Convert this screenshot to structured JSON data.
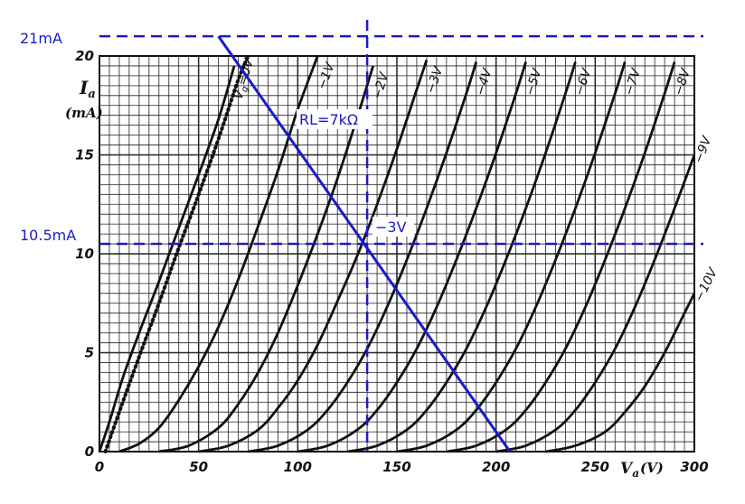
{
  "chart_data": {
    "type": "line",
    "xlabel_symbol": "V",
    "xlabel_sub": "a",
    "xlabel_unit": "(V)",
    "ylabel_symbol": "I",
    "ylabel_sub": "a",
    "ylabel_unit": "(mA)",
    "xlim": [
      0,
      300
    ],
    "ylim": [
      0,
      20
    ],
    "x_ticks": [
      "0",
      "50",
      "100",
      "150",
      "200",
      "250",
      "300"
    ],
    "x_tick_values": [
      0,
      50,
      100,
      150,
      200,
      250,
      300
    ],
    "y_ticks": [
      "0",
      "5",
      "10",
      "15",
      "20"
    ],
    "y_tick_values": [
      0,
      5,
      10,
      15,
      20
    ],
    "grid": true,
    "curves": [
      {
        "label": "Vg=0V",
        "label_prefix": "V",
        "label_sub": "g",
        "label_suffix": "=0V",
        "style": "solid",
        "points": [
          [
            0,
            0
          ],
          [
            5,
            1.5
          ],
          [
            12,
            3.8
          ],
          [
            20,
            6.0
          ],
          [
            30,
            8.6
          ],
          [
            40,
            11.3
          ],
          [
            50,
            14.0
          ],
          [
            60,
            16.8
          ],
          [
            68,
            19.5
          ]
        ]
      },
      {
        "label": "Vg=0V (dotted)",
        "style": "dotted",
        "points": [
          [
            3,
            0
          ],
          [
            10,
            2
          ],
          [
            20,
            4.8
          ],
          [
            30,
            7.5
          ],
          [
            40,
            10.3
          ],
          [
            50,
            13.0
          ],
          [
            60,
            15.8
          ],
          [
            70,
            18.8
          ],
          [
            75,
            20
          ]
        ]
      },
      {
        "label": "−1V",
        "style": "solid",
        "points": [
          [
            10,
            0
          ],
          [
            20,
            0.4
          ],
          [
            30,
            1.2
          ],
          [
            40,
            2.6
          ],
          [
            50,
            4.3
          ],
          [
            60,
            6.3
          ],
          [
            70,
            8.7
          ],
          [
            80,
            11.4
          ],
          [
            90,
            14.2
          ],
          [
            100,
            17.3
          ],
          [
            110,
            20
          ]
        ]
      },
      {
        "label": "−2V",
        "style": "solid",
        "points": [
          [
            30,
            0
          ],
          [
            45,
            0.3
          ],
          [
            60,
            1.2
          ],
          [
            70,
            2.4
          ],
          [
            80,
            4.0
          ],
          [
            90,
            6.0
          ],
          [
            100,
            8.4
          ],
          [
            110,
            11.0
          ],
          [
            120,
            13.8
          ],
          [
            130,
            16.9
          ],
          [
            138,
            19.5
          ]
        ]
      },
      {
        "label": "−3V",
        "style": "solid",
        "points": [
          [
            50,
            0
          ],
          [
            65,
            0.3
          ],
          [
            80,
            1.1
          ],
          [
            90,
            2.2
          ],
          [
            100,
            3.6
          ],
          [
            110,
            5.4
          ],
          [
            120,
            7.6
          ],
          [
            130,
            9.9
          ],
          [
            140,
            12.5
          ],
          [
            150,
            15.3
          ],
          [
            160,
            18.3
          ],
          [
            165,
            19.8
          ]
        ]
      },
      {
        "label": "−4V",
        "style": "solid",
        "points": [
          [
            75,
            0
          ],
          [
            90,
            0.3
          ],
          [
            105,
            1.1
          ],
          [
            115,
            2.1
          ],
          [
            125,
            3.5
          ],
          [
            135,
            5.2
          ],
          [
            145,
            7.3
          ],
          [
            155,
            9.7
          ],
          [
            165,
            12.3
          ],
          [
            175,
            15.1
          ],
          [
            185,
            18.1
          ],
          [
            190,
            19.7
          ]
        ]
      },
      {
        "label": "−5V",
        "style": "solid",
        "points": [
          [
            100,
            0
          ],
          [
            115,
            0.3
          ],
          [
            130,
            1.1
          ],
          [
            140,
            2.1
          ],
          [
            150,
            3.5
          ],
          [
            160,
            5.2
          ],
          [
            170,
            7.3
          ],
          [
            180,
            9.7
          ],
          [
            190,
            12.3
          ],
          [
            200,
            15.1
          ],
          [
            210,
            18.1
          ],
          [
            215,
            19.7
          ]
        ]
      },
      {
        "label": "−6V",
        "style": "solid",
        "points": [
          [
            125,
            0
          ],
          [
            140,
            0.3
          ],
          [
            155,
            1.1
          ],
          [
            165,
            2.1
          ],
          [
            175,
            3.5
          ],
          [
            185,
            5.2
          ],
          [
            195,
            7.3
          ],
          [
            205,
            9.7
          ],
          [
            215,
            12.3
          ],
          [
            225,
            15.1
          ],
          [
            235,
            18.1
          ],
          [
            240,
            19.7
          ]
        ]
      },
      {
        "label": "−7V",
        "style": "solid",
        "points": [
          [
            150,
            0
          ],
          [
            165,
            0.3
          ],
          [
            180,
            1.1
          ],
          [
            190,
            2.1
          ],
          [
            200,
            3.5
          ],
          [
            210,
            5.2
          ],
          [
            220,
            7.3
          ],
          [
            230,
            9.7
          ],
          [
            240,
            12.3
          ],
          [
            250,
            15.1
          ],
          [
            260,
            18.1
          ],
          [
            265,
            19.7
          ]
        ]
      },
      {
        "label": "−8V",
        "style": "solid",
        "points": [
          [
            175,
            0
          ],
          [
            190,
            0.3
          ],
          [
            205,
            1.1
          ],
          [
            215,
            2.1
          ],
          [
            225,
            3.5
          ],
          [
            235,
            5.2
          ],
          [
            245,
            7.3
          ],
          [
            255,
            9.7
          ],
          [
            265,
            12.3
          ],
          [
            275,
            15.1
          ],
          [
            285,
            18.1
          ],
          [
            290,
            19.7
          ]
        ]
      },
      {
        "label": "−9V",
        "style": "solid",
        "points": [
          [
            200,
            0
          ],
          [
            215,
            0.3
          ],
          [
            230,
            1.1
          ],
          [
            240,
            2.1
          ],
          [
            250,
            3.5
          ],
          [
            260,
            5.2
          ],
          [
            270,
            7.3
          ],
          [
            280,
            9.7
          ],
          [
            290,
            12.3
          ],
          [
            300,
            15.0
          ]
        ]
      },
      {
        "label": "−10V",
        "style": "solid",
        "points": [
          [
            225,
            0
          ],
          [
            240,
            0.3
          ],
          [
            255,
            1.0
          ],
          [
            265,
            2.0
          ],
          [
            275,
            3.3
          ],
          [
            285,
            5.0
          ],
          [
            295,
            7.0
          ],
          [
            300,
            8.0
          ]
        ]
      }
    ],
    "load_line": {
      "label": "RL=7kΩ",
      "points": [
        [
          60,
          21
        ],
        [
          207,
          0
        ]
      ],
      "color": "#1a1acc"
    },
    "operating_point": {
      "x": 135,
      "y": 10.5,
      "label": "−3V"
    },
    "reference_lines": [
      {
        "axis": "y",
        "value": 21,
        "label": "21mA",
        "color": "#1a1acc"
      },
      {
        "axis": "y",
        "value": 10.5,
        "label": "10.5mA",
        "color": "#1a1acc"
      },
      {
        "axis": "x",
        "value": 135,
        "color": "#1a1acc"
      }
    ]
  }
}
